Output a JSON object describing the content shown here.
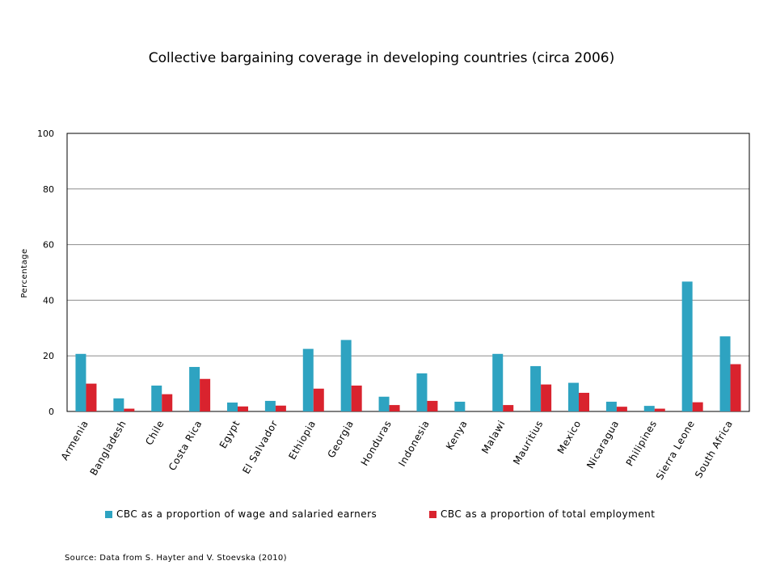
{
  "chart_data": {
    "type": "bar",
    "title": "Collective bargaining coverage in developing countries (circa 2006)",
    "ylabel": "Percentage",
    "xlabel": "",
    "ylim": [
      0,
      100
    ],
    "yticks": [
      0,
      20,
      40,
      60,
      80,
      100
    ],
    "grid": true,
    "legend_position": "bottom",
    "categories": [
      "Armenia",
      "Bangladesh",
      "Chile",
      "Costa Rica",
      "Egypt",
      "El Salvador",
      "Ethiopia",
      "Georgia",
      "Honduras",
      "Indonesia",
      "Kenya",
      "Malawi",
      "Mauritius",
      "Mexico",
      "Nicaragua",
      "Philipines",
      "Sierra Leone",
      "South Africa"
    ],
    "series": [
      {
        "name": "CBC as a proportion of wage and salaried earners",
        "color": "#2ea3c1",
        "values": [
          20.7,
          4.7,
          9.3,
          16.0,
          3.2,
          3.8,
          22.5,
          25.7,
          5.3,
          13.7,
          3.5,
          20.7,
          16.3,
          10.3,
          3.5,
          2.0,
          46.7,
          27.0
        ]
      },
      {
        "name": "CBC as a proportion of total employment",
        "color": "#d9232e",
        "values": [
          10.0,
          1.0,
          6.2,
          11.7,
          1.8,
          2.1,
          8.2,
          9.3,
          2.3,
          3.8,
          0,
          2.3,
          9.7,
          6.7,
          1.7,
          1.0,
          3.3,
          17.0
        ]
      }
    ],
    "source": "Source:  Data from S. Hayter and V. Stoevska (2010)"
  }
}
